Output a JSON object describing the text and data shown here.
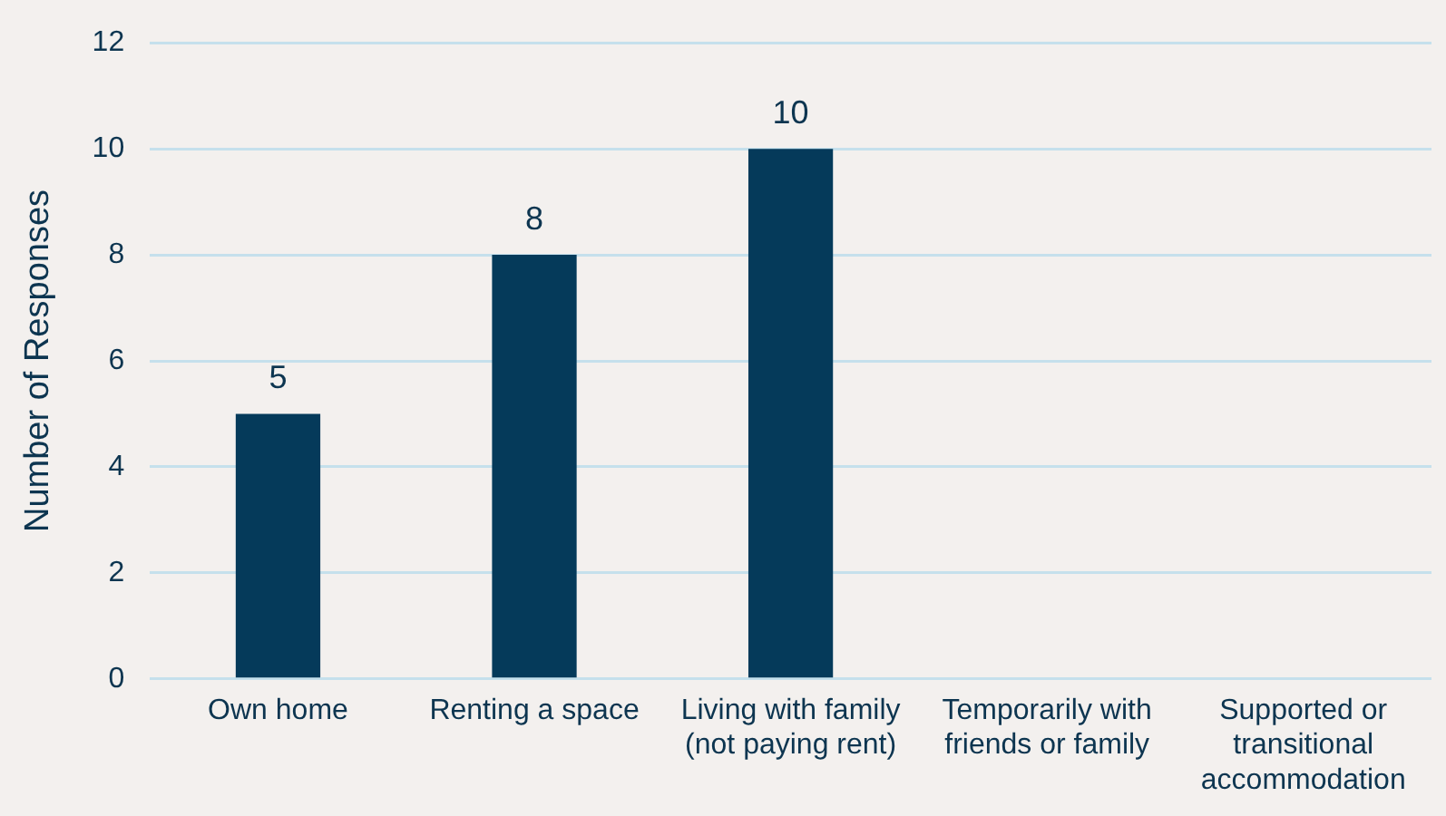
{
  "chart_data": {
    "type": "bar",
    "ylabel": "Number of Responses",
    "categories": [
      "Own home",
      "Renting a space",
      "Living with family (not paying rent)",
      "Temporarily with friends or family",
      "Supported or transitional accommodation"
    ],
    "values": [
      5,
      8,
      10,
      0,
      0
    ],
    "color": "#053a5a",
    "value_labels": [
      "5",
      "8",
      "10",
      null,
      null
    ],
    "ylim": [
      0,
      12
    ],
    "yticks": [
      0,
      2,
      4,
      6,
      8,
      10,
      12
    ],
    "grid": "y",
    "legend": false
  }
}
